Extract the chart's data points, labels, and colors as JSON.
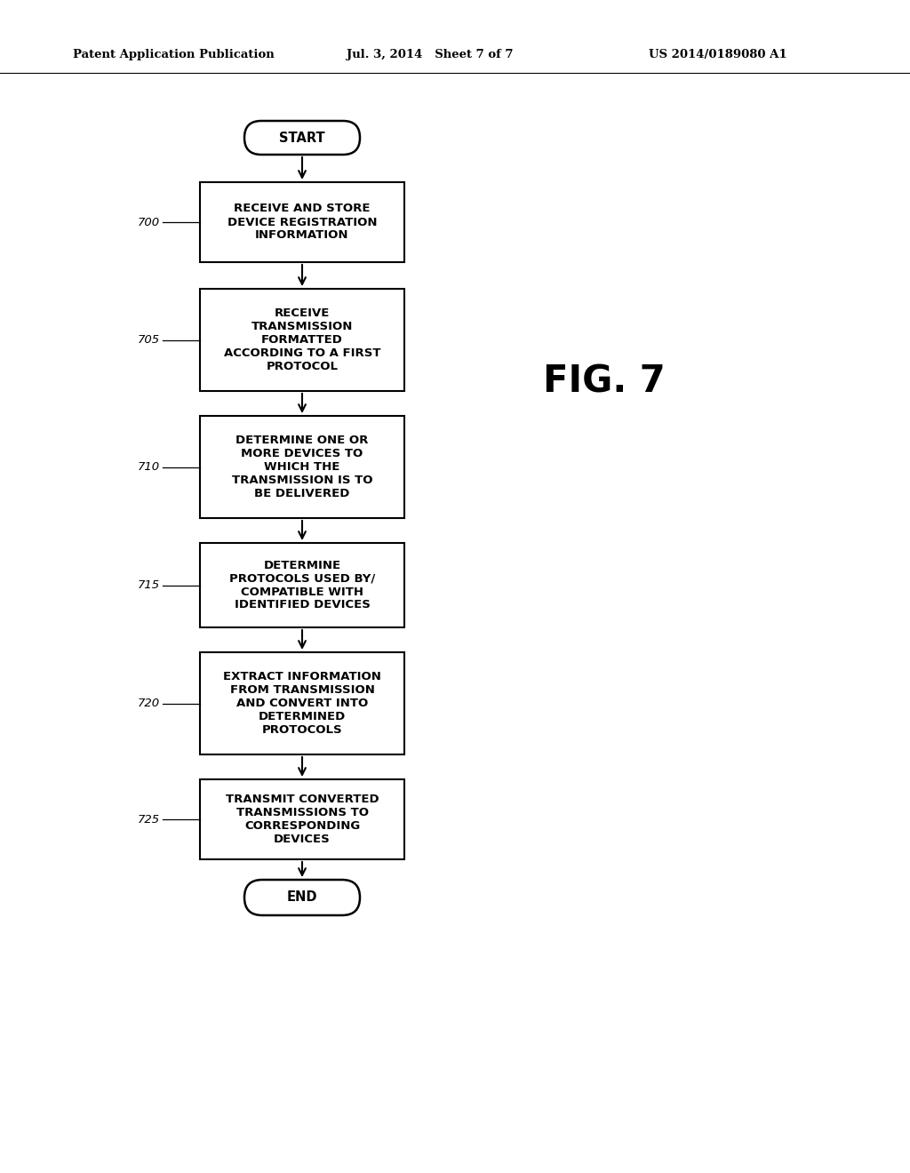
{
  "background_color": "#ffffff",
  "header_left": "Patent Application Publication",
  "header_mid": "Jul. 3, 2014   Sheet 7 of 7",
  "header_right": "US 2014/0189080 A1",
  "fig_label": "FIG. 7",
  "start_label": "START",
  "end_label": "END",
  "boxes": [
    {
      "id": "700",
      "label": "RECEIVE AND STORE\nDEVICE REGISTRATION\nINFORMATION"
    },
    {
      "id": "705",
      "label": "RECEIVE\nTRANSMISSION\nFORMATTED\nACCORDING TO A FIRST\nPROTOCOL"
    },
    {
      "id": "710",
      "label": "DETERMINE ONE OR\nMORE DEVICES TO\nWHICH THE\nTRANSMISSION IS TO\nBE DELIVERED"
    },
    {
      "id": "715",
      "label": "DETERMINE\nPROTOCOLS USED BY/\nCOMPATIBLE WITH\nIDENTIFIED DEVICES"
    },
    {
      "id": "720",
      "label": "EXTRACT INFORMATION\nFROM TRANSMISSION\nAND CONVERT INTO\nDETERMINED\nPROTOCOLS"
    },
    {
      "id": "725",
      "label": "TRANSMIT CONVERTED\nTRANSMISSIONS TO\nCORRESPONDING\nDEVICES"
    }
  ],
  "arrow_color": "#000000",
  "box_edge_color": "#000000",
  "text_color": "#000000"
}
